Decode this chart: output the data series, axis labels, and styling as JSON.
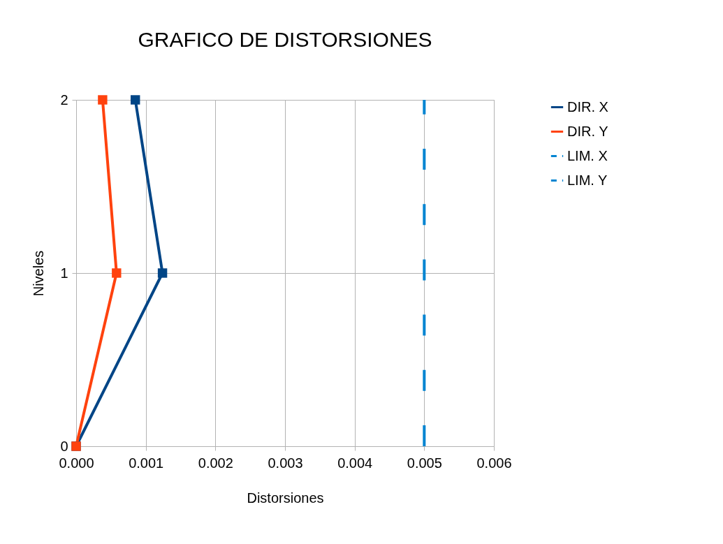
{
  "chart_data": {
    "type": "line",
    "title": "GRAFICO DE DISTORSIONES",
    "xlabel": "Distorsiones",
    "ylabel": "Niveles",
    "xlim": [
      0,
      0.006
    ],
    "xticks": [
      {
        "value": 0,
        "label": "0.000"
      },
      {
        "value": 0.001,
        "label": "0.001"
      },
      {
        "value": 0.002,
        "label": "0.002"
      },
      {
        "value": 0.003,
        "label": "0.003"
      },
      {
        "value": 0.004,
        "label": "0.004"
      },
      {
        "value": 0.005,
        "label": "0.005"
      },
      {
        "value": 0.006,
        "label": "0.006"
      }
    ],
    "ylim": [
      0,
      2
    ],
    "yticks": [
      0,
      1,
      2
    ],
    "grid": true,
    "legend": "right",
    "series": [
      {
        "name": "DIR. X",
        "color": "#004586",
        "x": [
          0,
          0.00124,
          0.00085
        ],
        "values": [
          0,
          1,
          2
        ],
        "marker": "square",
        "line_style": "solid"
      },
      {
        "name": "DIR. Y",
        "color": "#ff420e",
        "x": [
          0,
          0.00058,
          0.00038
        ],
        "values": [
          0,
          1,
          2
        ],
        "marker": "square",
        "line_style": "solid"
      },
      {
        "name": "LIM. X",
        "color": "#0084d1",
        "values": [
          null,
          null
        ],
        "line_style": "dashed"
      },
      {
        "name": "LIM. Y",
        "color": "#0084d1",
        "x": [
          0.005,
          0.005
        ],
        "values": [
          0,
          2
        ],
        "marker": "none",
        "line_style": "dashed"
      }
    ]
  }
}
